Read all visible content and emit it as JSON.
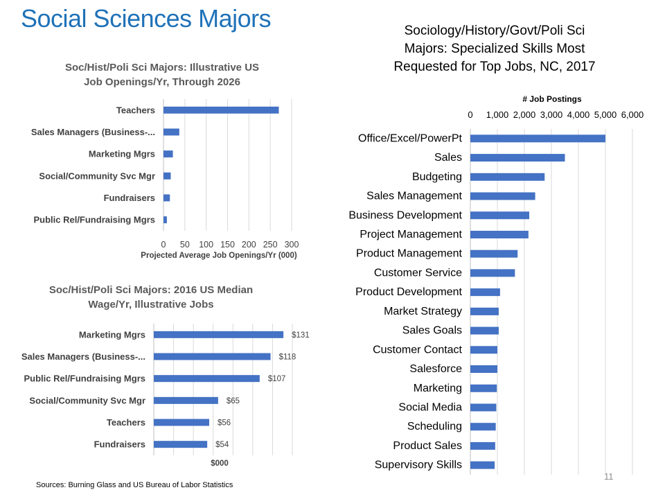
{
  "slide": {
    "title": "Social Sciences Majors",
    "source": "Sources: Burning Glass and US Bureau of Labor Statistics",
    "page_number": "11",
    "accent_color": "#1f72b8",
    "bar_color": "#4472c4"
  },
  "chart_data": [
    {
      "type": "bar",
      "orientation": "horizontal",
      "title_lines": [
        "Soc/Hist/Poli Sci Majors: Illustrative US",
        "Job Openings/Yr, Through 2026"
      ],
      "categories": [
        "Teachers",
        "Sales Managers (Business-...",
        "Marketing Mgrs",
        "Social/Community Svc Mgr",
        "Fundraisers",
        "Public Rel/Fundraising Mgrs"
      ],
      "values": [
        270,
        37,
        22,
        17,
        15,
        8
      ],
      "xlabel": "Projected Average Job Openings/Yr (000)",
      "xlim": [
        0,
        300
      ],
      "xticks": [
        0,
        50,
        100,
        150,
        200,
        250,
        300
      ],
      "xtick_labels": [
        "0",
        "50",
        "100",
        "150",
        "200",
        "250",
        "300"
      ],
      "grid": true
    },
    {
      "type": "bar",
      "orientation": "horizontal",
      "title_lines": [
        "Soc/Hist/Poli Sci Majors: 2016 US Median",
        "Wage/Yr, Illustrative Jobs"
      ],
      "categories": [
        "Marketing Mgrs",
        "Sales Managers (Business-...",
        "Public Rel/Fundraising Mgrs",
        "Social/Community Svc Mgr",
        "Teachers",
        "Fundraisers"
      ],
      "values": [
        131,
        118,
        107,
        65,
        56,
        54
      ],
      "data_labels": [
        "$131",
        "$118",
        "$107",
        "$65",
        "$56",
        "$54"
      ],
      "xlabel": "$000",
      "xlim": [
        0,
        140
      ],
      "grid": true
    },
    {
      "type": "bar",
      "orientation": "horizontal",
      "title_lines": [
        "Sociology/History/Govt/Poli Sci",
        "Majors: Specialized Skills Most",
        "Requested for Top Jobs, NC, 2017"
      ],
      "categories": [
        "Office/Excel/PowerPt",
        "Sales",
        "Budgeting",
        "Sales Management",
        "Business Development",
        "Project Management",
        "Product Management",
        "Customer Service",
        "Product Development",
        "Market Strategy",
        "Sales Goals",
        "Customer Contact",
        "Salesforce",
        "Marketing",
        "Social Media",
        "Scheduling",
        "Product Sales",
        "Supervisory Skills"
      ],
      "values": [
        5000,
        3500,
        2750,
        2400,
        2180,
        2150,
        1750,
        1650,
        1100,
        1050,
        1050,
        1000,
        1000,
        980,
        960,
        940,
        920,
        900
      ],
      "xlabel": "# Job Postings",
      "xlim": [
        0,
        6000
      ],
      "xticks": [
        0,
        1000,
        2000,
        3000,
        4000,
        5000,
        6000
      ],
      "xtick_labels": [
        "0",
        "1,000",
        "2,000",
        "3,000",
        "4,000",
        "5,000",
        "6,000"
      ],
      "xaxis_position": "top",
      "grid": true
    }
  ]
}
